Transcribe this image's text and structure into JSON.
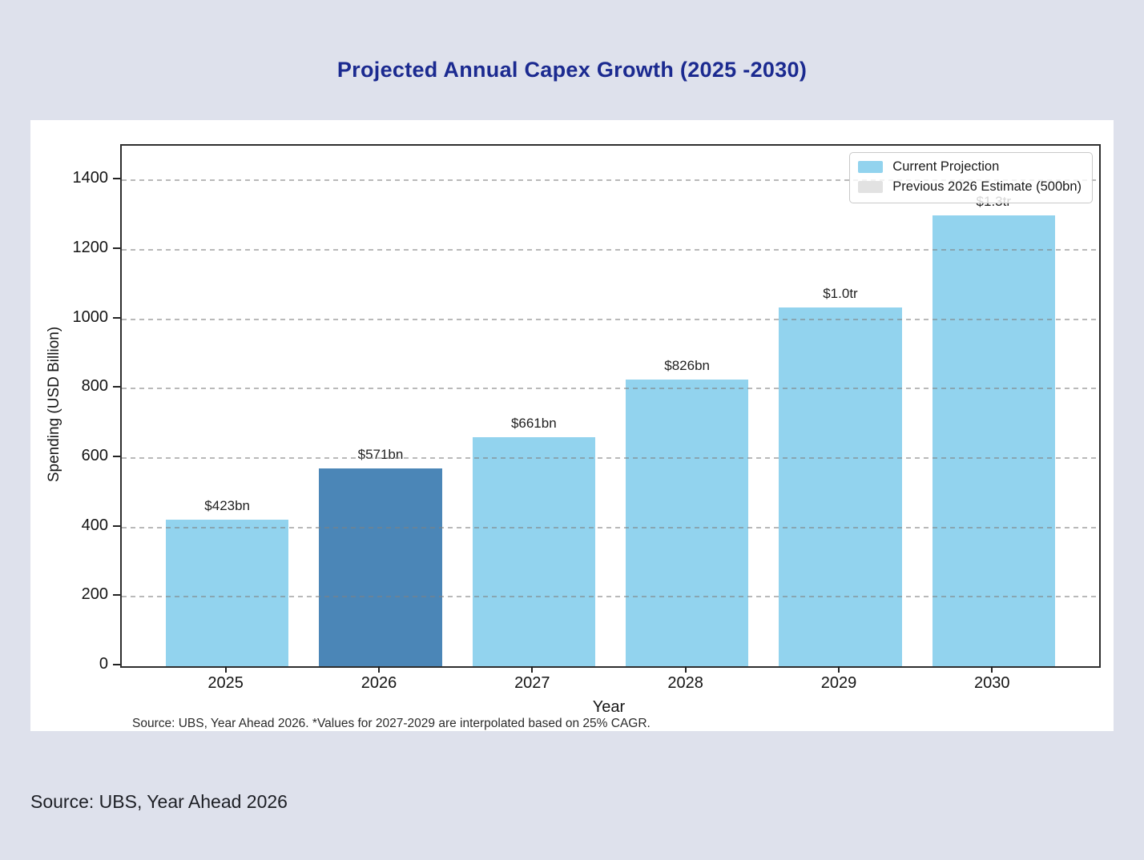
{
  "colors": {
    "page_bg": "#dee1ec",
    "card_bg": "#ffffff",
    "title": "#1b2a90",
    "bar_light_blue": "#92d3ee",
    "bar_dark_blue": "#4b86b7",
    "legend_gray": "#e2e2e2",
    "grid": "#808080",
    "spine": "#2e2e2e"
  },
  "header": {
    "title": "Projected Annual Capex Growth (2025 -2030)"
  },
  "caption": {
    "text": "Source: UBS, Year Ahead 2026"
  },
  "chart_data": {
    "type": "bar",
    "title": "Projected Annual Capex Growth (2025 -2030)",
    "xlabel": "Year",
    "ylabel": "Spending (USD Billion)",
    "ylim": [
      0,
      1500
    ],
    "yticks": [
      0,
      200,
      400,
      600,
      800,
      1000,
      1200,
      1400
    ],
    "grid": {
      "axis": "y",
      "style": "dashed"
    },
    "categories": [
      "2025",
      "2026",
      "2027",
      "2028",
      "2029",
      "2030"
    ],
    "bars": [
      {
        "year": "2025",
        "value": 423,
        "label": "$423bn",
        "color": "#92d3ee"
      },
      {
        "year": "2026",
        "value": 571,
        "label": "$571bn",
        "color": "#4b86b7"
      },
      {
        "year": "2027",
        "value": 661,
        "label": "$661bn",
        "color": "#92d3ee"
      },
      {
        "year": "2028",
        "value": 826,
        "label": "$826bn",
        "color": "#92d3ee"
      },
      {
        "year": "2029",
        "value": 1033,
        "label": "$1.0tr",
        "color": "#92d3ee"
      },
      {
        "year": "2030",
        "value": 1300,
        "label": "$1.3tr",
        "color": "#92d3ee"
      }
    ],
    "previous_2026_estimate": 500,
    "legend": {
      "position": "upper right",
      "items": [
        {
          "label": "Current Projection",
          "color": "#92d3ee"
        },
        {
          "label": "Previous 2026 Estimate (500bn)",
          "color": "#e2e2e2"
        }
      ]
    },
    "footnote": "Source: UBS, Year Ahead 2026. *Values for 2027-2029 are interpolated based on 25% CAGR."
  }
}
